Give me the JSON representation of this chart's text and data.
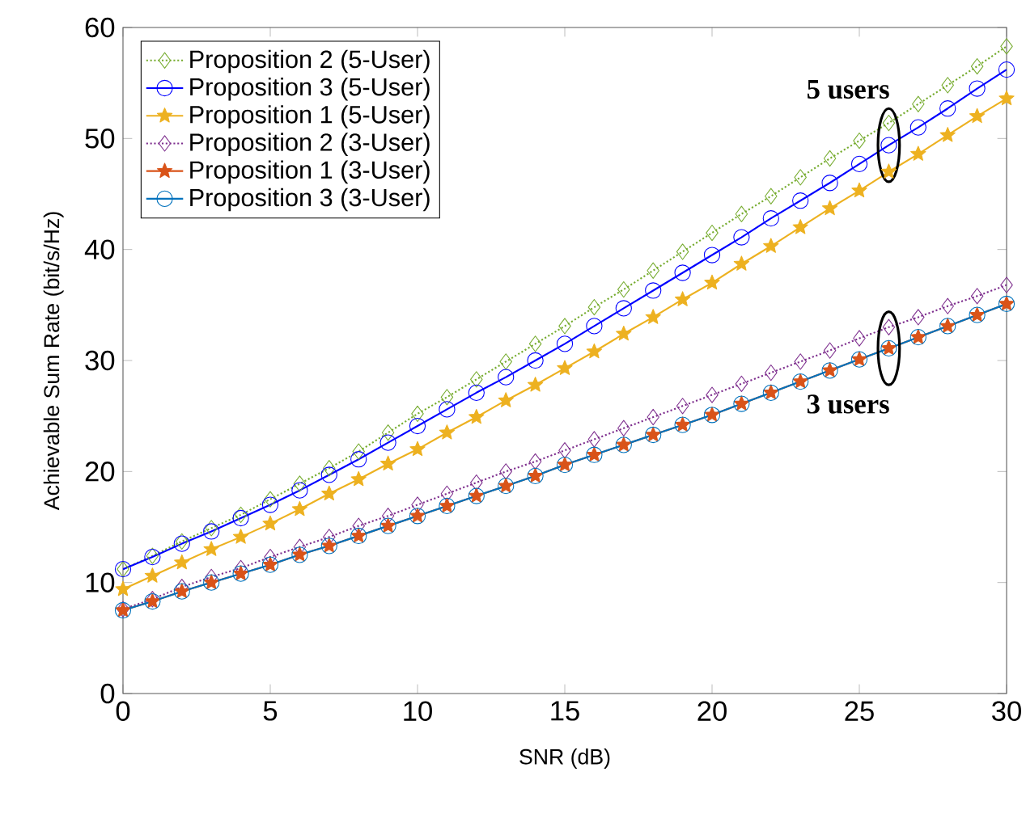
{
  "chart_data": {
    "type": "line",
    "xlabel": "SNR (dB)",
    "ylabel": "Achievable Sum Rate (bit/s/Hz)",
    "x": [
      0,
      1,
      2,
      3,
      4,
      5,
      6,
      7,
      8,
      9,
      10,
      11,
      12,
      13,
      14,
      15,
      16,
      17,
      18,
      19,
      20,
      21,
      22,
      23,
      24,
      25,
      26,
      27,
      28,
      29,
      30
    ],
    "xlim": [
      0,
      30
    ],
    "ylim": [
      0,
      60
    ],
    "xticks": [
      0,
      5,
      10,
      15,
      20,
      25,
      30
    ],
    "yticks": [
      0,
      10,
      20,
      30,
      40,
      50,
      60
    ],
    "grid": false,
    "legend": "top left",
    "series": [
      {
        "name": "Proposition 2 (5-User)",
        "color": "#77ac30",
        "marker": "diamond",
        "line_style": "dotted",
        "values": [
          11.2,
          12.4,
          13.7,
          14.9,
          16.1,
          17.5,
          18.9,
          20.3,
          21.8,
          23.5,
          25.2,
          26.7,
          28.3,
          29.9,
          31.5,
          33.1,
          34.8,
          36.4,
          38.1,
          39.8,
          41.5,
          43.2,
          44.8,
          46.5,
          48.2,
          49.8,
          51.4,
          53.1,
          54.8,
          56.5,
          58.3
        ]
      },
      {
        "name": "Proposition 3 (5-User)",
        "color": "#0000ff",
        "marker": "circle",
        "line_style": "solid",
        "values": [
          11.2,
          12.3,
          13.5,
          14.6,
          15.8,
          17.0,
          18.3,
          19.7,
          21.1,
          22.6,
          24.1,
          25.6,
          27.1,
          28.5,
          30.0,
          31.5,
          33.1,
          34.7,
          36.3,
          37.9,
          39.5,
          41.1,
          42.8,
          44.4,
          46.0,
          47.7,
          49.4,
          51.0,
          52.7,
          54.5,
          56.2
        ]
      },
      {
        "name": "Proposition 1 (5-User)",
        "color": "#edb120",
        "marker": "star",
        "line_style": "solid",
        "values": [
          9.4,
          10.6,
          11.8,
          13.0,
          14.1,
          15.3,
          16.6,
          18.0,
          19.3,
          20.7,
          22.0,
          23.5,
          24.9,
          26.4,
          27.8,
          29.3,
          30.8,
          32.4,
          33.9,
          35.5,
          37.0,
          38.7,
          40.3,
          42.0,
          43.7,
          45.3,
          47.0,
          48.6,
          50.3,
          52.0,
          53.6
        ]
      },
      {
        "name": "Proposition 2 (3-User)",
        "color": "#7e2f8e",
        "marker": "diamond",
        "line_style": "dotted",
        "values": [
          7.6,
          8.5,
          9.6,
          10.5,
          11.3,
          12.3,
          13.2,
          14.1,
          15.1,
          16.0,
          17.0,
          18.0,
          19.0,
          20.0,
          20.9,
          21.9,
          22.9,
          23.9,
          24.9,
          25.9,
          26.9,
          27.9,
          28.9,
          29.9,
          30.9,
          32.0,
          33.0,
          33.9,
          34.9,
          35.8,
          36.8
        ]
      },
      {
        "name": "Proposition 1 (3-User)",
        "color": "#d95319",
        "marker": "star",
        "line_style": "solid",
        "values": [
          7.5,
          8.3,
          9.2,
          10.0,
          10.8,
          11.6,
          12.5,
          13.3,
          14.2,
          15.1,
          16.0,
          16.9,
          17.8,
          18.7,
          19.6,
          20.6,
          21.5,
          22.4,
          23.3,
          24.2,
          25.1,
          26.1,
          27.1,
          28.1,
          29.1,
          30.1,
          31.1,
          32.1,
          33.1,
          34.1,
          35.1
        ]
      },
      {
        "name": "Proposition 3 (3-User)",
        "color": "#0072bd",
        "marker": "circle",
        "line_style": "solid",
        "values": [
          7.5,
          8.3,
          9.2,
          10.0,
          10.8,
          11.6,
          12.5,
          13.3,
          14.2,
          15.1,
          16.0,
          16.9,
          17.8,
          18.7,
          19.6,
          20.6,
          21.5,
          22.4,
          23.3,
          24.2,
          25.1,
          26.1,
          27.1,
          28.1,
          29.1,
          30.1,
          31.1,
          32.1,
          33.1,
          34.1,
          35.1
        ]
      }
    ],
    "annotations": [
      {
        "text": "5 users",
        "x": 26,
        "y": 49.4
      },
      {
        "text": "3 users",
        "x": 26,
        "y": 31.1
      }
    ]
  }
}
